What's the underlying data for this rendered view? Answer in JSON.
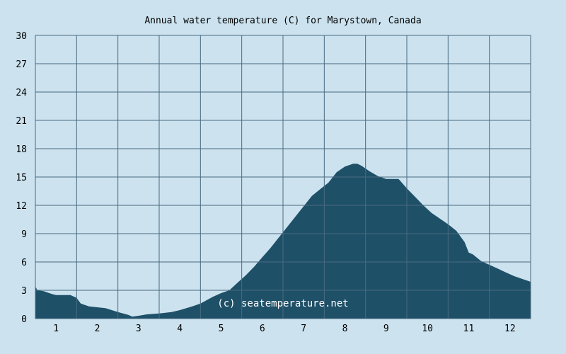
{
  "chart_data": {
    "type": "area",
    "title": "Annual water temperature (C) for Marystown, Canada",
    "xlabel": "",
    "ylabel": "",
    "x_ticks": [
      "1",
      "2",
      "3",
      "4",
      "5",
      "6",
      "7",
      "8",
      "9",
      "10",
      "11",
      "12"
    ],
    "y_ticks": [
      "0",
      "3",
      "6",
      "9",
      "12",
      "15",
      "18",
      "21",
      "24",
      "27",
      "30"
    ],
    "xlim": [
      0.5,
      12.5
    ],
    "ylim": [
      0,
      30
    ],
    "grid": true,
    "series": [
      {
        "x": [
          0.5,
          0.55,
          0.7,
          0.9,
          1.0,
          1.2,
          1.35,
          1.5,
          1.6,
          1.8,
          2.0,
          2.2,
          2.5,
          2.75,
          2.85,
          3.0,
          3.2,
          3.5,
          3.8,
          4.0,
          4.3,
          4.5,
          4.8,
          5.0,
          5.2,
          5.4,
          5.6,
          5.8,
          6.0,
          6.2,
          6.4,
          6.6,
          6.8,
          7.0,
          7.2,
          7.4,
          7.6,
          7.8,
          8.0,
          8.2,
          8.3,
          8.4,
          8.6,
          8.8,
          9.0,
          9.3,
          9.5,
          9.7,
          9.9,
          10.1,
          10.3,
          10.5,
          10.7,
          10.9,
          11.0,
          11.1,
          11.3,
          11.5,
          11.7,
          11.9,
          12.1,
          12.3,
          12.5
        ],
        "values": [
          3.4,
          3.0,
          2.9,
          2.6,
          2.5,
          2.5,
          2.5,
          2.2,
          1.6,
          1.3,
          1.2,
          1.1,
          0.7,
          0.4,
          0.2,
          0.3,
          0.45,
          0.55,
          0.7,
          0.9,
          1.3,
          1.6,
          2.3,
          2.7,
          3.0,
          3.8,
          4.6,
          5.5,
          6.5,
          7.5,
          8.6,
          9.7,
          10.8,
          11.9,
          13.0,
          13.7,
          14.4,
          15.5,
          16.1,
          16.4,
          16.4,
          16.2,
          15.6,
          15.1,
          14.8,
          14.8,
          13.8,
          12.9,
          12.0,
          11.2,
          10.6,
          10.0,
          9.3,
          8.1,
          7.0,
          6.8,
          6.1,
          5.7,
          5.3,
          4.9,
          4.5,
          4.2,
          3.9
        ],
        "color": "#1e5068"
      }
    ],
    "annotations": [
      "(c) seatemperature.net"
    ],
    "colors": {
      "background": "#cce3ef",
      "grid": "#4a6a80"
    }
  }
}
